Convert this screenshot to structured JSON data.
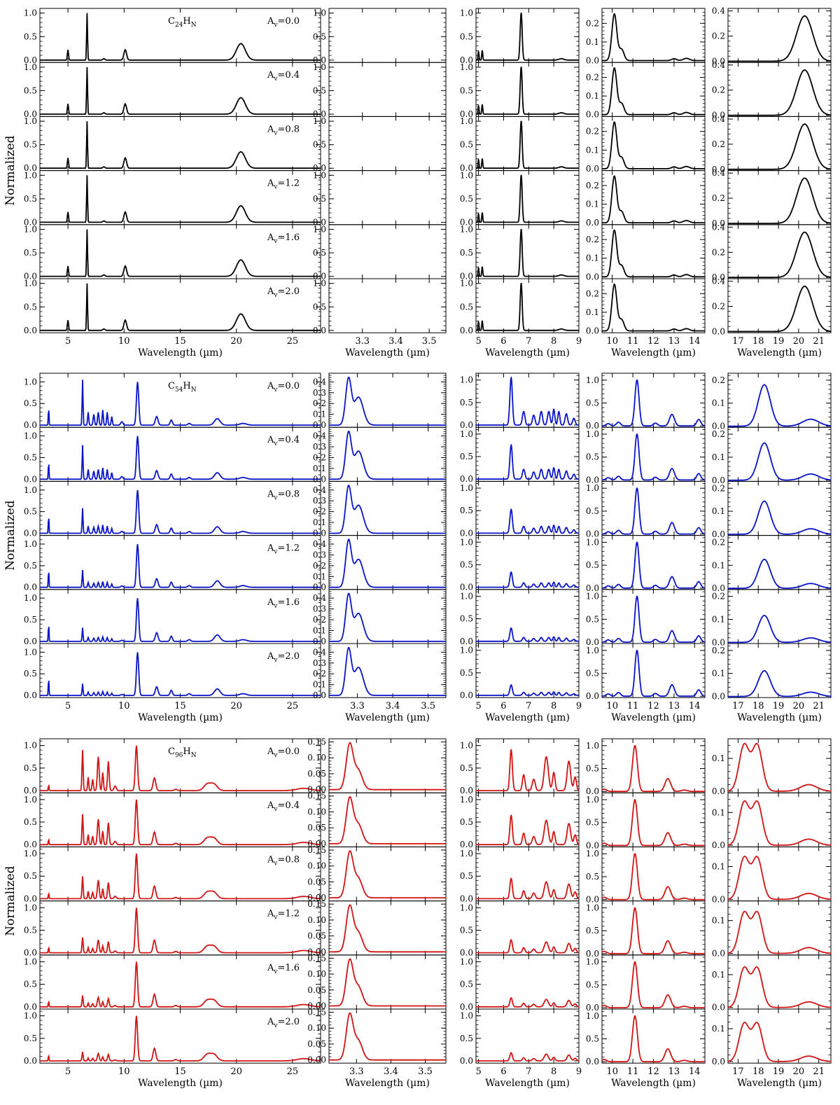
{
  "figure": {
    "ylabel": "Normalized",
    "xlabel": "Wavelength (µm)",
    "av_values": [
      "0.0",
      "0.4",
      "0.8",
      "1.2",
      "1.6",
      "2.0"
    ],
    "av_prefix": "A",
    "av_sub": "v"
  },
  "chart_data": [
    {
      "type": "line",
      "molecule": {
        "main": "C",
        "n1": "24",
        "mid": "H",
        "n2": "N"
      },
      "color": "#000000",
      "columns": [
        {
          "xlim": [
            2.5,
            27.5
          ],
          "xticks": [
            "5",
            "10",
            "15",
            "20",
            "25"
          ],
          "xtickvals": [
            5,
            10,
            15,
            20,
            25
          ],
          "ylim": [
            -0.05,
            1.1
          ],
          "yticks": [
            "0.0",
            "0.5",
            "1.0"
          ],
          "ytickvals": [
            0,
            0.5,
            1.0
          ],
          "peaks": [
            [
              5.0,
              0.22,
              0.05
            ],
            [
              6.7,
              1.0,
              0.04
            ],
            [
              8.2,
              0.03,
              0.1
            ],
            [
              10.1,
              0.22,
              0.12
            ],
            [
              20.4,
              0.35,
              0.4
            ]
          ],
          "scale": [
            1.0,
            1.0,
            1.0,
            1.0,
            1.0,
            1.0
          ]
        },
        {
          "xlim": [
            3.2,
            3.55
          ],
          "xticks": [
            "3.3",
            "3.4",
            "3.5"
          ],
          "xtickvals": [
            3.3,
            3.4,
            3.5
          ],
          "ylim": [
            -0.05,
            1.1
          ],
          "yticks": [
            "0.0",
            "0.5",
            "1.0"
          ],
          "ytickvals": [
            0,
            0.5,
            1.0
          ],
          "peaks": [],
          "scale": [
            1,
            1,
            1,
            1,
            1,
            1
          ]
        },
        {
          "xlim": [
            4.9,
            9.0
          ],
          "xticks": [
            "5",
            "6",
            "7",
            "8",
            "9"
          ],
          "xtickvals": [
            5,
            6,
            7,
            8,
            9
          ],
          "ylim": [
            -0.05,
            1.1
          ],
          "yticks": [
            "0.0",
            "0.5",
            "1.0"
          ],
          "ytickvals": [
            0,
            0.5,
            1.0
          ],
          "peaks": [
            [
              5.0,
              0.18,
              0.02
            ],
            [
              5.15,
              0.2,
              0.02
            ],
            [
              6.7,
              1.0,
              0.04
            ],
            [
              8.3,
              0.03,
              0.1
            ]
          ],
          "scale": [
            1,
            1,
            1,
            1,
            1,
            1
          ]
        },
        {
          "xlim": [
            9.5,
            14.5
          ],
          "xticks": [
            "10",
            "11",
            "12",
            "13",
            "14"
          ],
          "xtickvals": [
            10,
            11,
            12,
            13,
            14
          ],
          "ylim": [
            -0.01,
            0.28
          ],
          "yticks": [
            "0.0",
            "0.1",
            "0.2"
          ],
          "ytickvals": [
            0,
            0.1,
            0.2
          ],
          "peaks": [
            [
              10.1,
              0.25,
              0.12
            ],
            [
              10.45,
              0.06,
              0.12
            ],
            [
              13.0,
              0.01,
              0.12
            ],
            [
              13.6,
              0.012,
              0.15
            ]
          ],
          "scale": [
            1,
            1,
            1,
            1,
            1,
            1
          ]
        },
        {
          "xlim": [
            16.5,
            21.6
          ],
          "xticks": [
            "17",
            "18",
            "19",
            "20",
            "21"
          ],
          "xtickvals": [
            17,
            18,
            19,
            20,
            21
          ],
          "ylim": [
            -0.01,
            0.42
          ],
          "yticks": [
            "0.0",
            "0.2",
            "0.4"
          ],
          "ytickvals": [
            0,
            0.2,
            0.4
          ],
          "peaks": [
            [
              20.3,
              0.36,
              0.4
            ]
          ],
          "scale": [
            1,
            1,
            1,
            1,
            1,
            1
          ]
        }
      ]
    },
    {
      "type": "line",
      "molecule": {
        "main": "C",
        "n1": "54",
        "mid": "H",
        "n2": "N"
      },
      "color": "#0a14c8",
      "columns": [
        {
          "xlim": [
            2.5,
            27.5
          ],
          "xticks": [
            "5",
            "10",
            "15",
            "20",
            "25"
          ],
          "xtickvals": [
            5,
            10,
            15,
            20,
            25
          ],
          "ylim": [
            -0.05,
            1.2
          ],
          "yticks": [
            "0.0",
            "0.5",
            "1.0"
          ],
          "ytickvals": [
            0,
            0.5,
            1.0
          ],
          "peaks": [
            [
              3.28,
              0.42,
              0.03
            ],
            [
              6.3,
              1.05,
              0.04
            ],
            [
              6.8,
              0.3,
              0.05
            ],
            [
              7.3,
              0.25,
              0.06
            ],
            [
              7.7,
              0.3,
              0.06
            ],
            [
              8.1,
              0.35,
              0.05
            ],
            [
              8.5,
              0.3,
              0.05
            ],
            [
              8.9,
              0.2,
              0.05
            ],
            [
              9.8,
              0.08,
              0.1
            ],
            [
              11.2,
              1.0,
              0.1
            ],
            [
              12.9,
              0.2,
              0.12
            ],
            [
              14.2,
              0.12,
              0.1
            ],
            [
              15.8,
              0.04,
              0.12
            ],
            [
              18.3,
              0.15,
              0.25
            ],
            [
              20.6,
              0.04,
              0.3
            ]
          ],
          "scale": [
            1,
            0.75,
            0.55,
            0.38,
            0.3,
            0.26
          ]
        },
        {
          "xlim": [
            3.22,
            3.55
          ],
          "xticks": [
            "3.3",
            "3.4",
            "3.5"
          ],
          "xtickvals": [
            3.3,
            3.4,
            3.5
          ],
          "ylim": [
            -0.02,
            0.48
          ],
          "yticks": [
            "0.0",
            "0.1",
            "0.2",
            "0.3",
            "0.4"
          ],
          "ytickvals": [
            0,
            0.1,
            0.2,
            0.3,
            0.4
          ],
          "peaks": [
            [
              3.275,
              0.42,
              0.008
            ],
            [
              3.3,
              0.18,
              0.012
            ],
            [
              3.31,
              0.1,
              0.012
            ]
          ],
          "scale": [
            1,
            1,
            1,
            1,
            1,
            1
          ]
        },
        {
          "xlim": [
            4.9,
            9.0
          ],
          "xticks": [
            "5",
            "6",
            "7",
            "8",
            "9"
          ],
          "xtickvals": [
            5,
            6,
            7,
            8,
            9
          ],
          "ylim": [
            -0.05,
            1.15
          ],
          "yticks": [
            "0.0",
            "0.5",
            "1.0"
          ],
          "ytickvals": [
            0,
            0.5,
            1.0
          ],
          "peaks": [
            [
              6.3,
              1.05,
              0.05
            ],
            [
              6.8,
              0.3,
              0.05
            ],
            [
              7.2,
              0.22,
              0.05
            ],
            [
              7.5,
              0.3,
              0.05
            ],
            [
              7.8,
              0.3,
              0.05
            ],
            [
              8.0,
              0.35,
              0.04
            ],
            [
              8.2,
              0.3,
              0.04
            ],
            [
              8.5,
              0.25,
              0.05
            ],
            [
              8.8,
              0.15,
              0.05
            ]
          ],
          "scale": [
            1,
            0.72,
            0.5,
            0.32,
            0.28,
            0.22
          ]
        },
        {
          "xlim": [
            9.5,
            14.5
          ],
          "xticks": [
            "10",
            "11",
            "12",
            "13",
            "14"
          ],
          "xtickvals": [
            10,
            11,
            12,
            13,
            14
          ],
          "ylim": [
            -0.03,
            1.15
          ],
          "yticks": [
            "0.0",
            "0.5",
            "1.0"
          ],
          "ytickvals": [
            0,
            0.5,
            1.0
          ],
          "peaks": [
            [
              9.8,
              0.05,
              0.1
            ],
            [
              10.3,
              0.08,
              0.1
            ],
            [
              11.2,
              1.0,
              0.1
            ],
            [
              12.1,
              0.06,
              0.1
            ],
            [
              12.9,
              0.25,
              0.12
            ],
            [
              14.2,
              0.14,
              0.1
            ]
          ],
          "scale": [
            1,
            1,
            1,
            1,
            1,
            1
          ]
        },
        {
          "xlim": [
            16.5,
            21.6
          ],
          "xticks": [
            "17",
            "18",
            "19",
            "20",
            "21"
          ],
          "xtickvals": [
            17,
            18,
            19,
            20,
            21
          ],
          "ylim": [
            -0.005,
            0.23
          ],
          "yticks": [
            "0.0",
            "0.1",
            "0.2"
          ],
          "ytickvals": [
            0,
            0.1,
            0.2
          ],
          "peaks": [
            [
              18.3,
              0.18,
              0.3
            ],
            [
              20.6,
              0.03,
              0.4
            ]
          ],
          "scale": [
            1,
            0.9,
            0.8,
            0.7,
            0.65,
            0.62
          ]
        }
      ]
    },
    {
      "type": "line",
      "molecule": {
        "main": "C",
        "n1": "96",
        "mid": "H",
        "n2": "N"
      },
      "color": "#d21414",
      "columns": [
        {
          "xlim": [
            2.5,
            27.5
          ],
          "xticks": [
            "5",
            "10",
            "15",
            "20",
            "25"
          ],
          "xtickvals": [
            5,
            10,
            15,
            20,
            25
          ],
          "ylim": [
            -0.05,
            1.15
          ],
          "yticks": [
            "0.0",
            "0.5",
            "1.0"
          ],
          "ytickvals": [
            0,
            0.5,
            1.0
          ],
          "peaks": [
            [
              3.28,
              0.13,
              0.03
            ],
            [
              6.3,
              0.9,
              0.05
            ],
            [
              6.8,
              0.3,
              0.05
            ],
            [
              7.2,
              0.25,
              0.06
            ],
            [
              7.7,
              0.75,
              0.08
            ],
            [
              8.1,
              0.4,
              0.06
            ],
            [
              8.6,
              0.65,
              0.07
            ],
            [
              9.2,
              0.1,
              0.1
            ],
            [
              11.1,
              1.0,
              0.1
            ],
            [
              12.7,
              0.28,
              0.12
            ],
            [
              14.6,
              0.03,
              0.12
            ],
            [
              17.4,
              0.14,
              0.3
            ],
            [
              18.0,
              0.14,
              0.3
            ],
            [
              26.0,
              0.05,
              0.6
            ]
          ],
          "scale": [
            1,
            0.75,
            0.55,
            0.38,
            0.28,
            0.22
          ]
        },
        {
          "xlim": [
            3.22,
            3.56
          ],
          "xticks": [
            "3.3",
            "3.4",
            "3.5"
          ],
          "xtickvals": [
            3.3,
            3.4,
            3.5
          ],
          "ylim": [
            -0.01,
            0.16
          ],
          "yticks": [
            "0.00",
            "0.05",
            "0.10",
            "0.15"
          ],
          "ytickvals": [
            0,
            0.05,
            0.1,
            0.15
          ],
          "peaks": [
            [
              3.28,
              0.14,
              0.01
            ],
            [
              3.305,
              0.06,
              0.012
            ]
          ],
          "scale": [
            1,
            1,
            1,
            1,
            1,
            1
          ]
        },
        {
          "xlim": [
            4.9,
            9.0
          ],
          "xticks": [
            "5",
            "6",
            "7",
            "8",
            "9"
          ],
          "xtickvals": [
            5,
            6,
            7,
            8,
            9
          ],
          "ylim": [
            -0.05,
            1.15
          ],
          "yticks": [
            "0.0",
            "0.5",
            "1.0"
          ],
          "ytickvals": [
            0,
            0.5,
            1.0
          ],
          "peaks": [
            [
              6.3,
              0.9,
              0.05
            ],
            [
              6.8,
              0.35,
              0.05
            ],
            [
              7.2,
              0.25,
              0.06
            ],
            [
              7.7,
              0.75,
              0.08
            ],
            [
              8.0,
              0.4,
              0.05
            ],
            [
              8.6,
              0.65,
              0.07
            ],
            [
              8.85,
              0.3,
              0.05
            ]
          ],
          "scale": [
            1,
            0.72,
            0.5,
            0.32,
            0.22,
            0.2
          ]
        },
        {
          "xlim": [
            9.5,
            14.5
          ],
          "xticks": [
            "10",
            "11",
            "12",
            "13",
            "14"
          ],
          "xtickvals": [
            10,
            11,
            12,
            13,
            14
          ],
          "ylim": [
            -0.03,
            1.15
          ],
          "yticks": [
            "0.0",
            "0.5",
            "1.0"
          ],
          "ytickvals": [
            0,
            0.5,
            1.0
          ],
          "peaks": [
            [
              9.6,
              0.05,
              0.12
            ],
            [
              11.1,
              1.0,
              0.12
            ],
            [
              12.7,
              0.28,
              0.14
            ],
            [
              13.5,
              0.03,
              0.15
            ]
          ],
          "scale": [
            1,
            1,
            1,
            1,
            1,
            1
          ]
        },
        {
          "xlim": [
            16.5,
            21.6
          ],
          "xticks": [
            "17",
            "18",
            "19",
            "20",
            "21"
          ],
          "xtickvals": [
            17,
            18,
            19,
            20,
            21
          ],
          "ylim": [
            -0.005,
            0.16
          ],
          "yticks": [
            "0.0",
            "0.1"
          ],
          "ytickvals": [
            0,
            0.1
          ],
          "peaks": [
            [
              17.3,
              0.14,
              0.25
            ],
            [
              17.95,
              0.14,
              0.25
            ],
            [
              20.5,
              0.02,
              0.4
            ]
          ],
          "scale": [
            1,
            0.93,
            0.9,
            0.88,
            0.85,
            0.82
          ]
        }
      ]
    }
  ]
}
